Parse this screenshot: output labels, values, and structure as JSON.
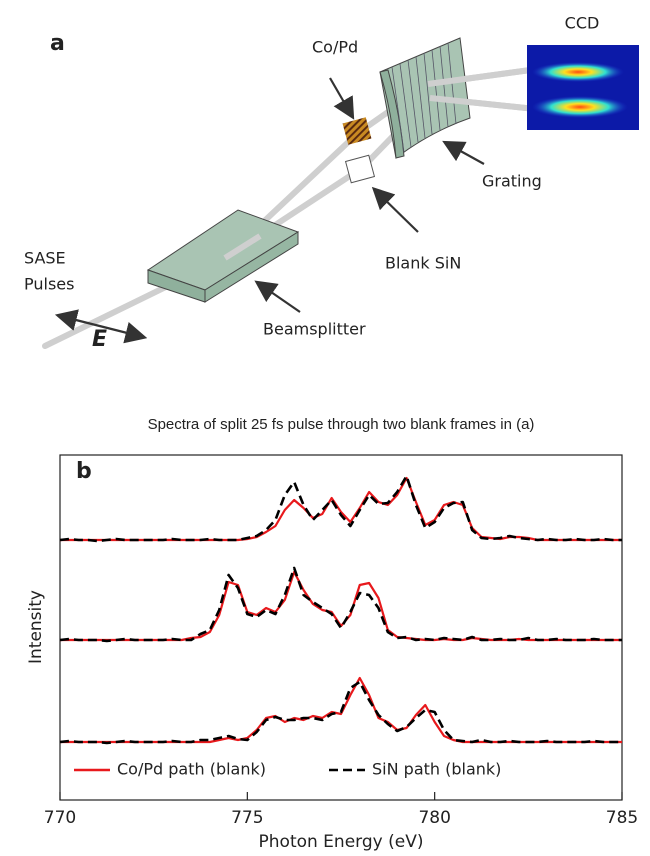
{
  "diagram": {
    "panel_label": "a",
    "ccd": "CCD",
    "sample": "Co/Pd",
    "grating": "Grating",
    "blank": "Blank SiN",
    "source": [
      "SASE",
      "Pulses"
    ],
    "polarization": "E",
    "beamsplitter": "Beamsplitter"
  },
  "chart_data": {
    "type": "line",
    "panel_label": "b",
    "title": "Spectra of split 25 fs pulse through two blank frames in (a)",
    "xlabel": "Photon Energy (eV)",
    "ylabel": "Intensity",
    "xlim": [
      770,
      785
    ],
    "xticks": [
      770,
      775,
      780,
      785
    ],
    "ylim": [
      0,
      3.45
    ],
    "legend": "lower left",
    "x": [
      770,
      770.25,
      770.5,
      770.75,
      771,
      771.25,
      771.5,
      771.75,
      772,
      772.25,
      772.5,
      772.75,
      773,
      773.25,
      773.5,
      773.75,
      774,
      774.25,
      774.5,
      774.75,
      775,
      775.25,
      775.5,
      775.75,
      776,
      776.25,
      776.5,
      776.75,
      777,
      777.25,
      777.5,
      777.75,
      778,
      778.25,
      778.5,
      778.75,
      779,
      779.25,
      779.5,
      779.75,
      780,
      780.25,
      780.5,
      780.75,
      781,
      781.25,
      781.5,
      781.75,
      782,
      782.25,
      782.5,
      782.75,
      783,
      783.25,
      783.5,
      783.75,
      784,
      784.25,
      784.5,
      784.75,
      785
    ],
    "series": [
      {
        "name": "Co/Pd path (blank)",
        "color": "#e8191c",
        "linestyle": "solid",
        "values": [
          2.6,
          2.6,
          2.6,
          2.6,
          2.6,
          2.6,
          2.6,
          2.6,
          2.6,
          2.6,
          2.6,
          2.6,
          2.6,
          2.6,
          2.6,
          2.6,
          2.6,
          2.6,
          2.6,
          2.6,
          2.61,
          2.63,
          2.68,
          2.74,
          2.9,
          3.0,
          2.92,
          2.82,
          2.86,
          3.02,
          2.88,
          2.78,
          2.92,
          3.08,
          2.98,
          2.95,
          3.05,
          3.22,
          2.98,
          2.75,
          2.8,
          2.95,
          2.98,
          2.95,
          2.72,
          2.63,
          2.62,
          2.61,
          2.63,
          2.63,
          2.62,
          2.6,
          2.6,
          2.6,
          2.6,
          2.6,
          2.6,
          2.6,
          2.6,
          2.6,
          2.6
        ]
      },
      {
        "name": "SiN path (blank)",
        "color": "#000000",
        "linestyle": "dashed",
        "values": [
          2.6,
          2.61,
          2.6,
          2.6,
          2.59,
          2.6,
          2.61,
          2.6,
          2.6,
          2.6,
          2.6,
          2.6,
          2.61,
          2.6,
          2.6,
          2.6,
          2.61,
          2.6,
          2.6,
          2.6,
          2.62,
          2.64,
          2.7,
          2.8,
          3.05,
          3.18,
          2.95,
          2.8,
          2.9,
          3.0,
          2.85,
          2.74,
          2.9,
          3.05,
          2.96,
          2.97,
          3.08,
          3.24,
          2.95,
          2.72,
          2.78,
          2.92,
          2.97,
          2.98,
          2.7,
          2.62,
          2.61,
          2.62,
          2.64,
          2.62,
          2.61,
          2.6,
          2.61,
          2.6,
          2.6,
          2.61,
          2.6,
          2.6,
          2.61,
          2.6,
          2.6
        ]
      },
      {
        "color": "#e8191c",
        "linestyle": "solid",
        "values": [
          1.6,
          1.6,
          1.6,
          1.6,
          1.6,
          1.6,
          1.6,
          1.6,
          1.6,
          1.6,
          1.6,
          1.6,
          1.6,
          1.6,
          1.62,
          1.63,
          1.68,
          1.85,
          2.18,
          2.15,
          1.88,
          1.85,
          1.92,
          1.88,
          2.0,
          2.28,
          2.1,
          1.96,
          1.9,
          1.88,
          1.74,
          1.85,
          2.15,
          2.17,
          2.02,
          1.7,
          1.63,
          1.62,
          1.61,
          1.6,
          1.6,
          1.61,
          1.6,
          1.6,
          1.62,
          1.61,
          1.6,
          1.6,
          1.6,
          1.61,
          1.6,
          1.6,
          1.6,
          1.6,
          1.6,
          1.6,
          1.6,
          1.6,
          1.6,
          1.6,
          1.6
        ]
      },
      {
        "color": "#000000",
        "linestyle": "dashed",
        "values": [
          1.6,
          1.61,
          1.6,
          1.6,
          1.6,
          1.59,
          1.6,
          1.61,
          1.6,
          1.6,
          1.6,
          1.6,
          1.61,
          1.6,
          1.6,
          1.66,
          1.7,
          1.9,
          2.25,
          2.12,
          1.86,
          1.83,
          1.9,
          1.86,
          2.05,
          2.32,
          2.05,
          1.98,
          1.92,
          1.86,
          1.72,
          1.88,
          2.07,
          2.05,
          1.92,
          1.68,
          1.62,
          1.63,
          1.6,
          1.61,
          1.6,
          1.62,
          1.61,
          1.6,
          1.63,
          1.6,
          1.6,
          1.61,
          1.6,
          1.6,
          1.62,
          1.6,
          1.6,
          1.61,
          1.6,
          1.6,
          1.6,
          1.61,
          1.6,
          1.6,
          1.6
        ]
      },
      {
        "color": "#e8191c",
        "linestyle": "solid",
        "values": [
          0.58,
          0.58,
          0.58,
          0.58,
          0.58,
          0.58,
          0.58,
          0.58,
          0.58,
          0.58,
          0.58,
          0.58,
          0.58,
          0.58,
          0.58,
          0.58,
          0.58,
          0.6,
          0.62,
          0.6,
          0.62,
          0.7,
          0.82,
          0.84,
          0.78,
          0.82,
          0.8,
          0.84,
          0.82,
          0.88,
          0.86,
          1.05,
          1.22,
          1.05,
          0.82,
          0.78,
          0.7,
          0.72,
          0.85,
          0.95,
          0.78,
          0.64,
          0.6,
          0.58,
          0.58,
          0.58,
          0.58,
          0.58,
          0.58,
          0.58,
          0.58,
          0.58,
          0.58,
          0.58,
          0.58,
          0.58,
          0.58,
          0.58,
          0.58,
          0.58,
          0.58
        ]
      },
      {
        "color": "#000000",
        "linestyle": "dashed",
        "values": [
          0.58,
          0.59,
          0.58,
          0.58,
          0.58,
          0.57,
          0.58,
          0.59,
          0.58,
          0.58,
          0.58,
          0.58,
          0.59,
          0.58,
          0.58,
          0.6,
          0.6,
          0.62,
          0.64,
          0.61,
          0.6,
          0.68,
          0.8,
          0.83,
          0.8,
          0.8,
          0.82,
          0.82,
          0.8,
          0.86,
          0.88,
          1.12,
          1.18,
          1.0,
          0.85,
          0.76,
          0.69,
          0.73,
          0.82,
          0.9,
          0.88,
          0.7,
          0.6,
          0.59,
          0.58,
          0.6,
          0.58,
          0.58,
          0.59,
          0.58,
          0.58,
          0.58,
          0.59,
          0.58,
          0.58,
          0.58,
          0.58,
          0.59,
          0.58,
          0.58,
          0.58
        ]
      }
    ]
  }
}
